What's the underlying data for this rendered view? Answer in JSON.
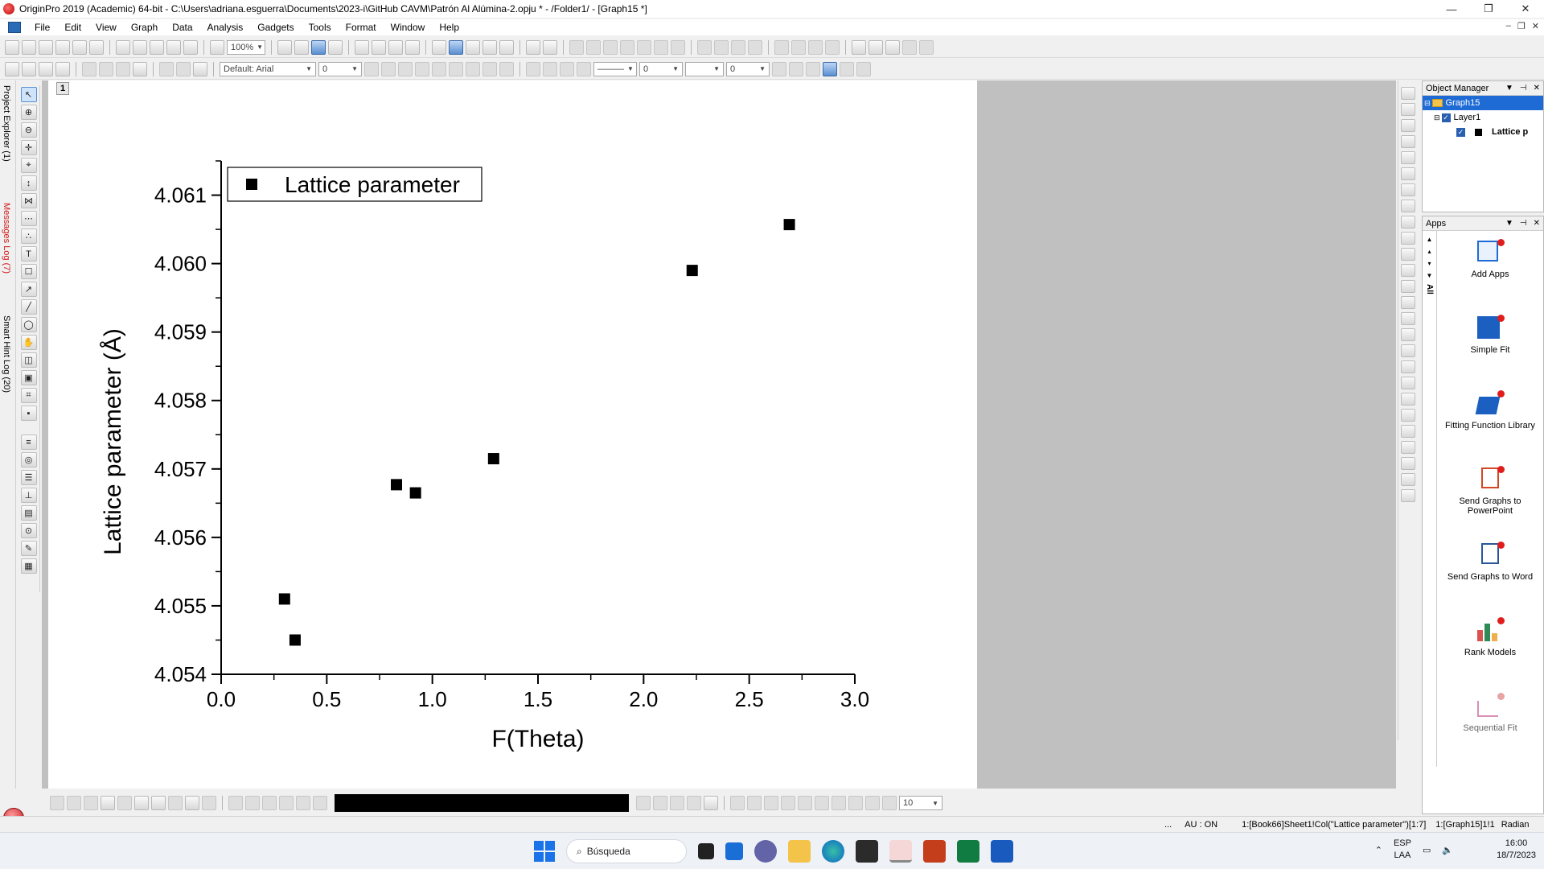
{
  "window": {
    "title": "OriginPro 2019 (Academic) 64-bit - C:\\Users\\adriana.esguerra\\Documents\\2023-i\\GitHub CAVM\\Patrón Al Alúmina-2.opju * - /Folder1/ - [Graph15 *]",
    "controls": [
      "—",
      "❐",
      "✕"
    ]
  },
  "menu": {
    "items": [
      "File",
      "Edit",
      "View",
      "Graph",
      "Data",
      "Analysis",
      "Gadgets",
      "Tools",
      "Format",
      "Window",
      "Help"
    ],
    "mdi_controls": [
      "–",
      "❐",
      "✕"
    ]
  },
  "toolbar": {
    "zoom": "100%",
    "font": "Default: Arial",
    "font_size": "0",
    "line_width": "0",
    "line_size": "0"
  },
  "left_dock": {
    "project_explorer": "Project Explorer (1)",
    "messages_log": "Messages Log (7)",
    "smart_hint_log": "Smart Hint Log (20)"
  },
  "graph": {
    "layer_number": "1",
    "legend_text": "Lattice parameter",
    "accent_color": "#000000"
  },
  "chart_data": {
    "type": "scatter",
    "title": "",
    "xlabel": "F(Theta)",
    "ylabel": "Lattice parameter (Å)",
    "xlim": [
      0.0,
      3.0
    ],
    "ylim": [
      4.054,
      4.0615
    ],
    "x_ticks": [
      "0.0",
      "0.5",
      "1.0",
      "1.5",
      "2.0",
      "2.5",
      "3.0"
    ],
    "y_ticks": [
      "4.054",
      "4.055",
      "4.056",
      "4.057",
      "4.058",
      "4.059",
      "4.060",
      "4.061"
    ],
    "legend_placement": "top-left",
    "grid": false,
    "series": [
      {
        "name": "Lattice parameter",
        "marker": "square",
        "color": "#000000",
        "x": [
          0.3,
          0.35,
          0.83,
          0.92,
          1.29,
          2.23,
          2.69
        ],
        "y": [
          4.0551,
          4.0545,
          4.05677,
          4.05665,
          4.05715,
          4.0599,
          4.06057
        ]
      }
    ]
  },
  "object_manager": {
    "title": "Object Manager",
    "graph_node": "Graph15",
    "layer_node": "Layer1",
    "plot_node": "Lattice p"
  },
  "apps": {
    "title": "Apps",
    "items": [
      {
        "label": "Add Apps",
        "color": "#1e6bd6",
        "icon": "add-apps-icon"
      },
      {
        "label": "Simple Fit",
        "color": "#1b5fc0",
        "icon": "simple-fit-icon"
      },
      {
        "label": "Fitting Function Library",
        "color": "#1b5fc0",
        "icon": "fitting-function-library-icon"
      },
      {
        "label": "Send Graphs to PowerPoint",
        "color": "#d24726",
        "icon": "powerpoint-icon"
      },
      {
        "label": "Send Graphs to Word",
        "color": "#2b5797",
        "icon": "word-icon"
      },
      {
        "label": "Rank Models",
        "color": "#2e8b57",
        "icon": "rank-models-icon"
      },
      {
        "label": "Sequential Fit",
        "color": "#d98fb6",
        "icon": "sequential-fit-icon"
      }
    ]
  },
  "bottom": {
    "size_value": "10"
  },
  "status": {
    "dots": "...",
    "au": "AU : ON",
    "dataset": "1:[Book66]Sheet1!Col(\"Lattice parameter\")[1:7]",
    "layer": "1:[Graph15]1!1",
    "unit": "Radian"
  },
  "taskbar": {
    "search_label": "Búsqueda",
    "language": "ESP",
    "language_sub": "LAA",
    "time": "16:00",
    "date": "18/7/2023"
  }
}
